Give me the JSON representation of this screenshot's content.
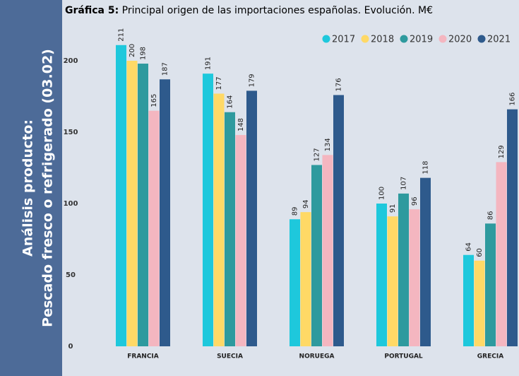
{
  "sidebar": [
    "Análisis producto:",
    "Pescado fresco o refrigerado (03.02)"
  ],
  "chart_data": {
    "type": "bar",
    "title_label": "Gráfica 5:",
    "title": "Principal origen de las importaciones españolas. Evolución. M€",
    "categories": [
      "FRANCIA",
      "SUECIA",
      "NORUEGA",
      "PORTUGAL",
      "GRECIA"
    ],
    "series": [
      {
        "name": "2017",
        "color": "#1ec8dc",
        "values": [
          211,
          191,
          89,
          100,
          64
        ]
      },
      {
        "name": "2018",
        "color": "#ffd966",
        "values": [
          200,
          177,
          94,
          91,
          60
        ]
      },
      {
        "name": "2019",
        "color": "#2e9a9e",
        "values": [
          198,
          164,
          127,
          107,
          86
        ]
      },
      {
        "name": "2020",
        "color": "#f4b6c0",
        "values": [
          165,
          148,
          134,
          96,
          129
        ]
      },
      {
        "name": "2021",
        "color": "#2e5a8c",
        "values": [
          187,
          179,
          176,
          118,
          166
        ]
      }
    ],
    "ylim": [
      0,
      220
    ],
    "yticks": [
      0,
      50,
      100,
      150,
      200
    ],
    "grid": false,
    "legend": "top-right"
  }
}
